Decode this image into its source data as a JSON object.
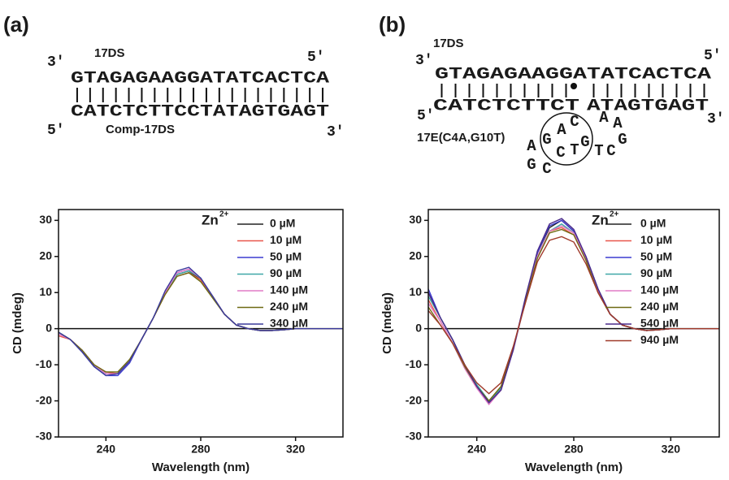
{
  "panels": [
    {
      "label": "(a)",
      "diagram": {
        "strand_name": "17DS",
        "top_left": "3'",
        "top_right": "5'",
        "top": "GTAGAGAAGGATATCACTCA",
        "bottom": "CATCTCTTCCTATAGTGAGT",
        "bottom_left": "5'",
        "bottom_right": "3'",
        "bottom_name": "Comp-17DS"
      }
    },
    {
      "label": "(b)",
      "diagram": {
        "strand_name": "17DS",
        "top_left": "3'",
        "top_right": "5'",
        "top": "GTAGAGAAGGATATCACTCA",
        "bottom": "CATCTCTTCT",
        "bottom_2": "ATAGTGAGT",
        "bottom_left": "5'",
        "bottom_right": "3'",
        "enzyme_name": "17E(C4A,G10T)",
        "loop": [
          {
            "text": "A",
            "color": "#1a1a1a"
          },
          {
            "text": "G",
            "color": "#1a1a1a"
          },
          {
            "text": "G",
            "color": "#1a1a1a"
          },
          {
            "text": "C",
            "color": "#1a1a1a"
          },
          {
            "text": "C",
            "color": "#1a1a1a"
          },
          {
            "text": "A",
            "color": "#3b5fc0"
          },
          {
            "text": "C",
            "color": "#1a1a1a"
          },
          {
            "text": "G",
            "color": "#1a1a1a"
          },
          {
            "text": "T",
            "color": "#3b5fc0"
          },
          {
            "text": "T",
            "color": "#1a1a1a"
          },
          {
            "text": "C",
            "color": "#1a1a1a"
          },
          {
            "text": "G",
            "color": "#1a1a1a"
          },
          {
            "text": "A",
            "color": "#1a1a1a"
          },
          {
            "text": "A",
            "color": "#1a1a1a"
          }
        ]
      }
    }
  ],
  "chart_data": [
    {
      "type": "line",
      "xlabel": "Wavelength (nm)",
      "ylabel": "CD (mdeg)",
      "legend_title": "Zn",
      "legend_title_sup": "2+",
      "x": [
        220,
        225,
        230,
        235,
        240,
        245,
        250,
        255,
        260,
        265,
        270,
        275,
        280,
        285,
        290,
        295,
        300,
        305,
        310,
        315,
        320,
        325,
        330,
        335,
        340
      ],
      "xlim": [
        220,
        340
      ],
      "xticks": [
        240,
        280,
        320
      ],
      "ylim": [
        -30,
        33
      ],
      "yticks": [
        -30,
        -20,
        -10,
        0,
        10,
        20,
        30
      ],
      "series": [
        {
          "name": "0 µM",
          "color": "#222222",
          "values": [
            -1,
            -3,
            -6,
            -10,
            -12.5,
            -12.5,
            -9,
            -3,
            3,
            10,
            15,
            16,
            13.5,
            9,
            4,
            1,
            0,
            -0.5,
            -0.5,
            -0.3,
            0,
            0,
            0,
            0,
            0
          ]
        },
        {
          "name": "10 µM",
          "color": "#e8564b",
          "values": [
            -2,
            -3,
            -6,
            -10,
            -12,
            -12.5,
            -9,
            -3,
            3,
            9.5,
            14.5,
            15.5,
            13.5,
            9,
            4,
            1,
            0,
            -0.5,
            -0.5,
            -0.3,
            0,
            0,
            0,
            0,
            0
          ]
        },
        {
          "name": "50 µM",
          "color": "#3b3bd0",
          "values": [
            -1,
            -3,
            -6.5,
            -10.5,
            -13,
            -13,
            -9.5,
            -3,
            3,
            10,
            15.5,
            16.5,
            14,
            9,
            4,
            1,
            0,
            -0.5,
            -0.5,
            -0.3,
            0,
            0,
            0,
            0,
            0
          ]
        },
        {
          "name": "90 µM",
          "color": "#3fa7a7",
          "values": [
            -1,
            -3,
            -6,
            -10,
            -12.5,
            -12.5,
            -9,
            -3,
            3,
            10,
            15,
            16,
            14,
            9,
            4,
            1,
            0,
            -0.5,
            -0.5,
            -0.3,
            0,
            0,
            0,
            0,
            0
          ]
        },
        {
          "name": "140 µM",
          "color": "#e07bc5",
          "values": [
            -1.5,
            -3,
            -6,
            -10,
            -12.5,
            -12.5,
            -9,
            -3,
            3,
            10,
            15.5,
            16.5,
            14,
            9,
            4,
            1,
            0,
            -0.5,
            -0.5,
            -0.3,
            0,
            0,
            0,
            0,
            0
          ]
        },
        {
          "name": "240 µM",
          "color": "#6e6a12",
          "values": [
            -1,
            -3,
            -6,
            -10,
            -12,
            -12,
            -8.5,
            -3,
            3,
            9.5,
            14.5,
            15.5,
            13,
            8.5,
            4,
            1,
            0,
            -0.5,
            -0.5,
            -0.3,
            0,
            0,
            0,
            0,
            0
          ]
        },
        {
          "name": "340 µM",
          "color": "#3a3a9c",
          "values": [
            -1,
            -3,
            -6.5,
            -10.5,
            -13,
            -12.5,
            -9,
            -3,
            3,
            10.5,
            16,
            17,
            14,
            9,
            4,
            1,
            0,
            -0.5,
            -0.5,
            -0.3,
            0,
            0,
            0,
            0,
            0
          ]
        }
      ]
    },
    {
      "type": "line",
      "xlabel": "Wavelength (nm)",
      "ylabel": "CD (mdeg)",
      "legend_title": "Zn",
      "legend_title_sup": "2+",
      "x": [
        220,
        225,
        230,
        235,
        240,
        245,
        250,
        255,
        260,
        265,
        270,
        275,
        280,
        285,
        290,
        295,
        300,
        305,
        310,
        315,
        320,
        325,
        330,
        335,
        340
      ],
      "xlim": [
        220,
        340
      ],
      "xticks": [
        240,
        280,
        320
      ],
      "ylim": [
        -30,
        33
      ],
      "yticks": [
        -30,
        -20,
        -10,
        0,
        10,
        20,
        30
      ],
      "series": [
        {
          "name": "0 µM",
          "color": "#222222",
          "values": [
            10,
            3,
            -3,
            -10,
            -16,
            -20,
            -16.5,
            -6,
            8,
            21,
            28,
            30,
            27,
            20,
            11,
            4,
            1,
            0,
            -0.5,
            -0.3,
            0,
            0,
            0,
            0,
            0
          ]
        },
        {
          "name": "10 µM",
          "color": "#e8564b",
          "values": [
            8,
            2,
            -4,
            -10.5,
            -16,
            -20,
            -16,
            -5.5,
            8,
            20,
            27,
            28,
            26,
            19,
            10,
            4,
            1,
            0,
            -0.5,
            -0.3,
            0,
            0,
            0,
            0,
            0
          ]
        },
        {
          "name": "50 µM",
          "color": "#3b3bd0",
          "values": [
            11,
            3,
            -3,
            -10,
            -16,
            -20.5,
            -17,
            -6,
            8,
            21,
            28.5,
            30,
            27,
            20,
            11,
            4,
            1,
            0,
            -0.5,
            -0.3,
            0,
            0,
            0,
            0,
            0
          ]
        },
        {
          "name": "90 µM",
          "color": "#3fa7a7",
          "values": [
            9,
            3,
            -3,
            -10,
            -15.5,
            -20,
            -16.5,
            -6,
            7.5,
            20,
            27,
            29,
            26.5,
            19.5,
            10.5,
            4,
            1,
            0,
            -0.5,
            -0.3,
            0,
            0,
            0,
            0,
            0
          ]
        },
        {
          "name": "140 µM",
          "color": "#e07bc5",
          "values": [
            7,
            2,
            -4,
            -11,
            -16.5,
            -21,
            -17,
            -6,
            7.5,
            20,
            27,
            28.5,
            26.5,
            19.5,
            10.5,
            4,
            1,
            0,
            -0.5,
            -0.3,
            0,
            0,
            0,
            0,
            0
          ]
        },
        {
          "name": "240 µM",
          "color": "#6e6a12",
          "values": [
            6,
            1,
            -4,
            -10.5,
            -16,
            -20,
            -16,
            -5.5,
            7.5,
            19.5,
            26.5,
            27.5,
            26,
            19,
            10,
            4,
            1,
            0,
            -0.5,
            -0.3,
            0,
            0,
            0,
            0,
            0
          ]
        },
        {
          "name": "540 µM",
          "color": "#4a2a8a",
          "values": [
            10,
            3,
            -3,
            -10,
            -16,
            -20.5,
            -17,
            -6,
            8.5,
            21.5,
            29,
            30.5,
            27.5,
            20,
            11,
            4,
            1,
            0,
            -0.5,
            -0.3,
            0,
            0,
            0,
            0,
            0
          ]
        },
        {
          "name": "940 µM",
          "color": "#a03a2a",
          "values": [
            5,
            1,
            -4,
            -10,
            -15,
            -18,
            -15,
            -5,
            7,
            18.5,
            24.5,
            25.5,
            24,
            18,
            10,
            4,
            1,
            0,
            -0.5,
            -0.3,
            0,
            0,
            0,
            0,
            0
          ]
        }
      ]
    }
  ]
}
